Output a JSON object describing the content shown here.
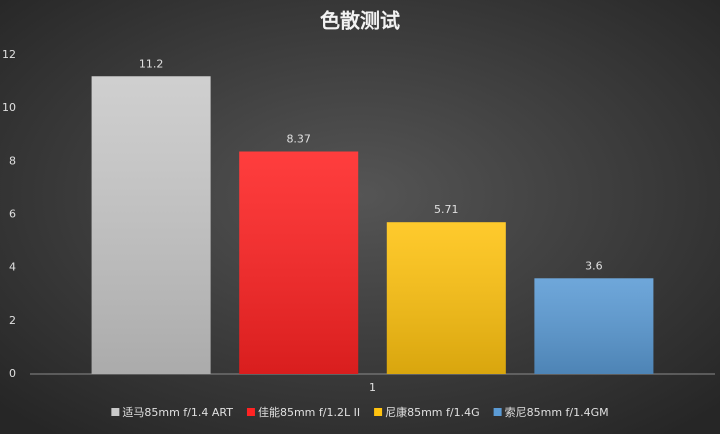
{
  "chart_data": {
    "type": "bar",
    "title": "色散测试",
    "categories": [
      "1"
    ],
    "series": [
      {
        "name": "适马85mm f/1.4 ART",
        "color": "#c9c9c9",
        "values": [
          11.2
        ]
      },
      {
        "name": "佳能85mm f/1.2L II",
        "color": "#ff2323",
        "values": [
          8.37
        ]
      },
      {
        "name": "尼康85mm f/1.4G",
        "color": "#ffc310",
        "values": [
          5.71
        ]
      },
      {
        "name": "索尼85mm f/1.4GM",
        "color": "#5b9bd5",
        "values": [
          3.6
        ]
      }
    ],
    "ylim": [
      0,
      12
    ],
    "yticks": [
      0,
      2,
      4,
      6,
      8,
      10,
      12
    ],
    "grid": false,
    "legend": "bottom"
  }
}
